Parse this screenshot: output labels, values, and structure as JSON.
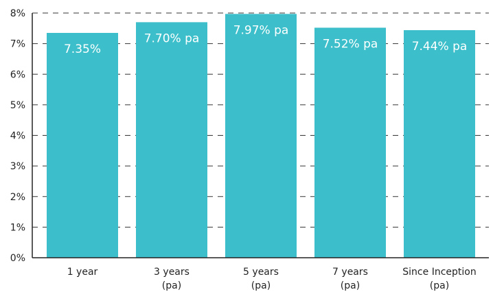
{
  "chart_data": {
    "type": "bar",
    "title": "",
    "xlabel": "",
    "ylabel": "",
    "categories": [
      [
        "1 year"
      ],
      [
        "3 years",
        "(pa)"
      ],
      [
        "5 years",
        "(pa)"
      ],
      [
        "7 years",
        "(pa)"
      ],
      [
        "Since Inception",
        "(pa)"
      ]
    ],
    "values": [
      7.35,
      7.7,
      7.97,
      7.52,
      7.44
    ],
    "data_labels": [
      "7.35%",
      "7.70% pa",
      "7.97% pa",
      "7.52% pa",
      "7.44% pa"
    ],
    "ylim": [
      0,
      8
    ],
    "yticks": [
      0,
      1,
      2,
      3,
      4,
      5,
      6,
      7,
      8
    ],
    "ytick_labels": [
      "0%",
      "1%",
      "2%",
      "3%",
      "4%",
      "5%",
      "6%",
      "7%",
      "8%"
    ],
    "grid": "dashed horizontal",
    "legend": "none",
    "colors": {
      "bar": "#3cbfca",
      "grid": "#333333",
      "axis": "#222222"
    }
  }
}
